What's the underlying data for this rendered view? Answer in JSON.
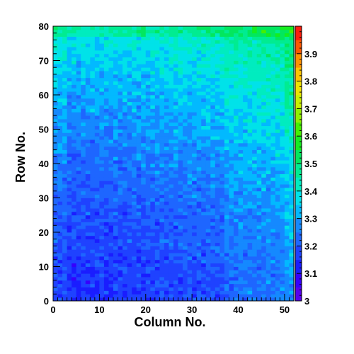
{
  "chart_data": {
    "type": "heatmap",
    "title": "",
    "xlabel": "Column No.",
    "ylabel": "Row No.",
    "x_range": [
      0,
      52
    ],
    "y_range": [
      0,
      80
    ],
    "x_ticks": [
      0,
      10,
      20,
      30,
      40,
      50
    ],
    "y_ticks": [
      0,
      10,
      20,
      30,
      40,
      50,
      60,
      70,
      80
    ],
    "n_columns": 52,
    "n_rows": 80,
    "z_range": [
      3.0,
      4.0
    ],
    "colorbar_ticks": [
      3,
      3.1,
      3.2,
      3.3,
      3.4,
      3.5,
      3.6,
      3.7,
      3.8,
      3.9
    ],
    "colormap": "ROOT rainbow (purple → blue → cyan → green → yellow → orange → red)",
    "legend": "colorbar on right",
    "grid": false,
    "value_trend": {
      "description": "Values mostly 3.1–3.35; higher (≈3.35–3.55) toward top rows and right columns, lowest (≈3.05–3.15) in lower-left region",
      "row_bands": [
        {
          "rows": [
            0,
            20
          ],
          "typical": 3.16
        },
        {
          "rows": [
            20,
            50
          ],
          "typical": 3.22
        },
        {
          "rows": [
            50,
            70
          ],
          "typical": 3.3
        },
        {
          "rows": [
            70,
            80
          ],
          "typical": 3.38
        }
      ]
    }
  }
}
